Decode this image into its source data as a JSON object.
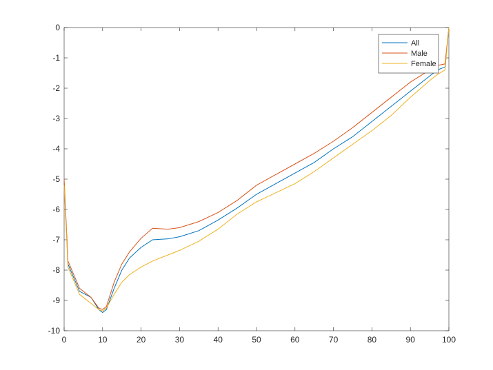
{
  "chart_data": {
    "type": "line",
    "x": [
      0,
      1,
      4,
      7,
      9,
      10,
      11,
      13,
      15,
      17,
      20,
      23,
      27,
      30,
      35,
      40,
      45,
      50,
      55,
      60,
      65,
      70,
      75,
      80,
      85,
      90,
      95,
      97,
      99,
      100
    ],
    "series": [
      {
        "name": "All",
        "color": "#0072bd",
        "values": [
          -5.1,
          -7.8,
          -8.7,
          -8.9,
          -9.3,
          -9.4,
          -9.3,
          -8.6,
          -8.0,
          -7.6,
          -7.25,
          -7.0,
          -6.97,
          -6.9,
          -6.7,
          -6.35,
          -5.95,
          -5.5,
          -5.15,
          -4.8,
          -4.45,
          -4.0,
          -3.6,
          -3.1,
          -2.6,
          -2.1,
          -1.6,
          -1.4,
          -1.3,
          0
        ]
      },
      {
        "name": "Male",
        "color": "#d95319",
        "values": [
          -5.0,
          -7.7,
          -8.6,
          -8.9,
          -9.25,
          -9.3,
          -9.2,
          -8.4,
          -7.8,
          -7.4,
          -6.95,
          -6.62,
          -6.65,
          -6.6,
          -6.4,
          -6.1,
          -5.7,
          -5.2,
          -4.85,
          -4.5,
          -4.15,
          -3.75,
          -3.3,
          -2.8,
          -2.3,
          -1.8,
          -1.4,
          -1.25,
          -1.2,
          0
        ]
      },
      {
        "name": "Female",
        "color": "#edb120",
        "values": [
          -5.2,
          -7.9,
          -8.8,
          -9.1,
          -9.3,
          -9.35,
          -9.25,
          -8.8,
          -8.4,
          -8.15,
          -7.9,
          -7.7,
          -7.5,
          -7.35,
          -7.05,
          -6.65,
          -6.15,
          -5.75,
          -5.45,
          -5.15,
          -4.75,
          -4.3,
          -3.85,
          -3.4,
          -2.9,
          -2.3,
          -1.75,
          -1.55,
          -1.4,
          0
        ]
      }
    ],
    "xlim": [
      0,
      100
    ],
    "xticks": [
      0,
      10,
      20,
      30,
      40,
      50,
      60,
      70,
      80,
      90,
      100
    ],
    "ylim": [
      -10,
      0
    ],
    "yticks": [
      -10,
      -9,
      -8,
      -7,
      -6,
      -5,
      -4,
      -3,
      -2,
      -1,
      0
    ],
    "legend": "northeast"
  }
}
